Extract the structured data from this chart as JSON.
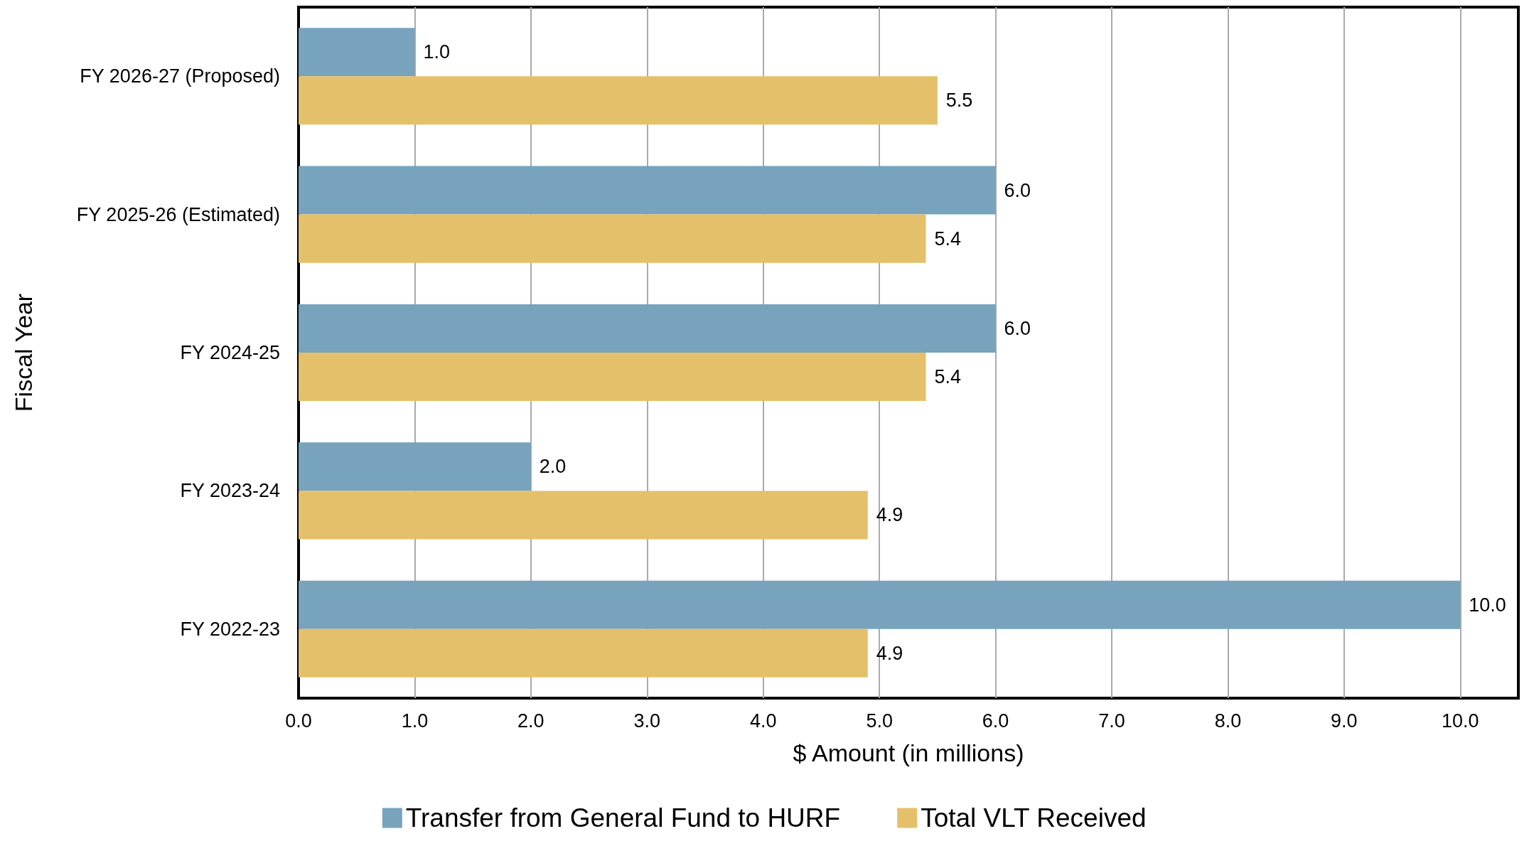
{
  "chart_data": {
    "type": "bar",
    "orientation": "horizontal",
    "xlabel": "$ Amount (in millions)",
    "ylabel": "Fiscal Year",
    "categories": [
      "FY 2026-27 (Proposed)",
      "FY 2025-26 (Estimated)",
      "FY 2024-25",
      "FY 2023-24",
      "FY 2022-23"
    ],
    "series": [
      {
        "name": "Transfer from General Fund to HURF",
        "color": "#77a3bd",
        "values": [
          1.0,
          6.0,
          6.0,
          2.0,
          10.0
        ],
        "value_labels": [
          "1.0",
          "6.0",
          "6.0",
          "2.0",
          "10.0"
        ]
      },
      {
        "name": "Total VLT Received",
        "color": "#e5c06a",
        "values": [
          5.5,
          5.4,
          5.4,
          4.9,
          4.9
        ],
        "value_labels": [
          "5.5",
          "5.4",
          "5.4",
          "4.9",
          "4.9"
        ]
      }
    ],
    "xlim": [
      0,
      10.5
    ],
    "xticks": [
      {
        "value": 0,
        "label": "0.0"
      },
      {
        "value": 1,
        "label": "1.0"
      },
      {
        "value": 2,
        "label": "2.0"
      },
      {
        "value": 3,
        "label": "3.0"
      },
      {
        "value": 4,
        "label": "4.0"
      },
      {
        "value": 5,
        "label": "5.0"
      },
      {
        "value": 6,
        "label": "6.0"
      },
      {
        "value": 7,
        "label": "7.0"
      },
      {
        "value": 8,
        "label": "8.0"
      },
      {
        "value": 9,
        "label": "9.0"
      },
      {
        "value": 10,
        "label": "10.0"
      }
    ],
    "grid": "x",
    "legend": "bottom"
  }
}
